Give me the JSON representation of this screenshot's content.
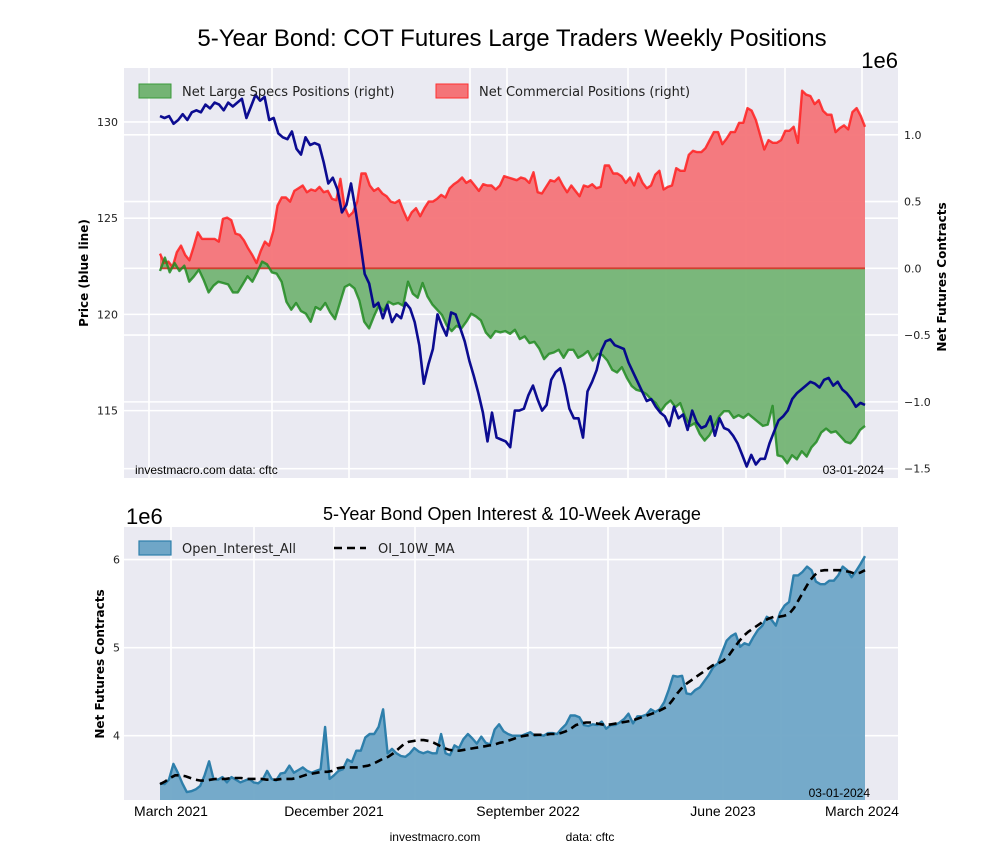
{
  "chart_data": [
    {
      "type": "area",
      "title": "5-Year Bond: COT Futures Large Traders Weekly Positions",
      "ylabel_left": "Price (blue line)",
      "ylabel_right": "Net Futures Contracts",
      "right_axis_multiplier": "1e6",
      "yticks_left": [
        "115",
        "120",
        "125",
        "130"
      ],
      "ylim_left": [
        111.5,
        132.8
      ],
      "yticks_right": [
        "−1.5",
        "−1.0",
        "−0.5",
        "0.0",
        "0.5",
        "1.0"
      ],
      "ylim_right": [
        -1.57,
        1.5
      ],
      "grid": true,
      "legend": "top-left",
      "legend_entries": [
        "Net Large Specs Positions (right)",
        "Net Commercial Positions (right)"
      ],
      "annotations": {
        "source": "investmacro.com    data: cftc",
        "date": "03-01-2024"
      },
      "x_range": [
        "2021-03",
        "2024-03"
      ],
      "series": [
        {
          "name": "Price",
          "axis": "left",
          "color": "#00008b",
          "values": [
            130.3,
            130.2,
            130.3,
            129.9,
            130.1,
            130.4,
            130.1,
            130.5,
            130.6,
            130.5,
            130.9,
            130.7,
            131.0,
            130.9,
            130.6,
            131.0,
            130.8,
            131.0,
            131.2,
            130.2,
            130.8,
            131.4,
            131.1,
            131.3,
            130.1,
            130.2,
            129.4,
            129.2,
            129.1,
            129.5,
            128.6,
            128.3,
            129.2,
            128.8,
            128.9,
            128.8,
            127.9,
            126.8,
            127.1,
            126.5,
            125.3,
            125.7,
            126.8,
            125.4,
            123.8,
            122.1,
            121.6,
            120.4,
            120.6,
            119.8,
            120.5,
            119.6,
            120.0,
            119.8,
            120.6,
            120.3,
            119.6,
            118.4,
            116.4,
            117.4,
            118.2,
            120.0,
            119.4,
            118.9,
            120.1,
            120.0,
            119.3,
            118.6,
            117.6,
            116.8,
            115.9,
            114.9,
            113.4,
            114.9,
            113.6,
            113.5,
            113.4,
            113.1,
            115.0,
            115.0,
            115.1,
            115.8,
            116.3,
            115.6,
            115.0,
            115.3,
            116.6,
            117.0,
            117.2,
            116.3,
            115.1,
            114.6,
            114.6,
            113.6,
            116.0,
            116.5,
            117.1,
            118.1,
            118.6,
            118.7,
            118.4,
            118.3,
            118.2,
            117.5,
            117.0,
            116.5,
            116.0,
            115.5,
            115.6,
            115.2,
            114.9,
            114.7,
            114.2,
            115.2,
            114.6,
            114.8,
            114.0,
            115.0,
            114.4,
            114.1,
            114.2,
            114.7,
            113.7,
            114.6,
            114.1,
            114.0,
            113.7,
            113.3,
            112.7,
            112.1,
            112.7,
            112.2,
            112.5,
            112.5,
            113.3,
            113.9,
            114.5,
            114.7,
            115.0,
            115.6,
            115.9,
            116.1,
            116.3,
            116.5,
            116.4,
            116.2,
            116.6,
            116.7,
            116.3,
            116.5,
            116.1,
            115.9,
            115.6,
            115.2,
            115.4,
            115.3
          ]
        },
        {
          "name": "Net Large Specs Positions (right)",
          "axis": "right",
          "color": "#228b22",
          "fill": "#74b474",
          "values": [
            -0.02,
            0.08,
            -0.03,
            0.04,
            -0.02,
            0.02,
            -0.1,
            -0.06,
            -0.01,
            -0.09,
            -0.18,
            -0.13,
            -0.1,
            -0.11,
            -0.12,
            -0.18,
            -0.18,
            -0.12,
            -0.06,
            -0.1,
            -0.03,
            0.05,
            0.03,
            -0.03,
            -0.04,
            -0.1,
            -0.25,
            -0.31,
            -0.26,
            -0.32,
            -0.34,
            -0.4,
            -0.29,
            -0.31,
            -0.26,
            -0.33,
            -0.38,
            -0.26,
            -0.14,
            -0.12,
            -0.15,
            -0.24,
            -0.4,
            -0.45,
            -0.36,
            -0.28,
            -0.32,
            -0.25,
            -0.27,
            -0.26,
            -0.28,
            -0.1,
            -0.19,
            -0.22,
            -0.11,
            -0.21,
            -0.27,
            -0.31,
            -0.35,
            -0.43,
            -0.47,
            -0.43,
            -0.45,
            -0.4,
            -0.34,
            -0.36,
            -0.39,
            -0.48,
            -0.52,
            -0.47,
            -0.48,
            -0.47,
            -0.49,
            -0.46,
            -0.53,
            -0.51,
            -0.56,
            -0.55,
            -0.6,
            -0.68,
            -0.64,
            -0.63,
            -0.61,
            -0.67,
            -0.61,
            -0.61,
            -0.67,
            -0.65,
            -0.62,
            -0.69,
            -0.64,
            -0.65,
            -0.69,
            -0.76,
            -0.78,
            -0.74,
            -0.82,
            -0.88,
            -0.91,
            -0.92,
            -0.94,
            -0.98,
            -1.01,
            -1.07,
            -1.02,
            -0.99,
            -1.04,
            -1.01,
            -1.11,
            -1.18,
            -1.16,
            -1.24,
            -1.29,
            -1.25,
            -1.18,
            -1.11,
            -1.07,
            -1.07,
            -1.12,
            -1.1,
            -1.12,
            -1.09,
            -1.12,
            -1.15,
            -1.18,
            -1.17,
            -1.03,
            -1.4,
            -1.41,
            -1.46,
            -1.4,
            -1.43,
            -1.37,
            -1.41,
            -1.34,
            -1.3,
            -1.23,
            -1.2,
            -1.23,
            -1.22,
            -1.26,
            -1.3,
            -1.31,
            -1.27,
            -1.21,
            -1.18
          ]
        },
        {
          "name": "Net Commercial Positions (right)",
          "axis": "right",
          "color": "#ff2020",
          "fill": "#f47478",
          "values": [
            0.11,
            0.04,
            0.05,
            0.01,
            0.12,
            0.17,
            0.1,
            0.06,
            0.16,
            0.27,
            0.22,
            0.22,
            0.22,
            0.22,
            0.2,
            0.37,
            0.38,
            0.36,
            0.26,
            0.25,
            0.21,
            0.15,
            0.1,
            0.04,
            0.13,
            0.2,
            0.17,
            0.28,
            0.47,
            0.53,
            0.53,
            0.5,
            0.58,
            0.6,
            0.62,
            0.57,
            0.59,
            0.58,
            0.61,
            0.57,
            0.58,
            0.52,
            0.51,
            0.67,
            0.46,
            0.39,
            0.42,
            0.5,
            0.71,
            0.71,
            0.62,
            0.58,
            0.6,
            0.56,
            0.54,
            0.5,
            0.49,
            0.51,
            0.43,
            0.36,
            0.42,
            0.45,
            0.39,
            0.45,
            0.5,
            0.5,
            0.52,
            0.55,
            0.53,
            0.6,
            0.63,
            0.65,
            0.68,
            0.64,
            0.66,
            0.62,
            0.58,
            0.63,
            0.62,
            0.62,
            0.59,
            0.62,
            0.69,
            0.68,
            0.67,
            0.66,
            0.68,
            0.67,
            0.64,
            0.72,
            0.57,
            0.56,
            0.61,
            0.66,
            0.65,
            0.68,
            0.62,
            0.57,
            0.62,
            0.58,
            0.54,
            0.62,
            0.61,
            0.63,
            0.6,
            0.61,
            0.77,
            0.77,
            0.71,
            0.71,
            0.69,
            0.64,
            0.68,
            0.62,
            0.71,
            0.64,
            0.6,
            0.62,
            0.7,
            0.73,
            0.59,
            0.61,
            0.62,
            0.75,
            0.73,
            0.73,
            0.85,
            0.88,
            0.87,
            0.87,
            0.9,
            0.96,
            1.02,
            1.02,
            0.93,
            0.97,
            1.02,
            1.02,
            1.09,
            1.09,
            1.2,
            1.18,
            1.11,
            1.0,
            0.89,
            0.96,
            0.94,
            0.94,
            0.96,
            1.03,
            1.03,
            1.06,
            0.94,
            1.33,
            1.3,
            1.29,
            1.23,
            1.26,
            1.18,
            1.15,
            1.15,
            1.02,
            1.05,
            1.07,
            1.04,
            1.17,
            1.2,
            1.14,
            1.06
          ]
        }
      ]
    },
    {
      "type": "area",
      "title": "5-Year Bond Open Interest & 10-Week Average",
      "ylabel": "Net Futures Contracts",
      "y_multiplier": "1e6",
      "yticks": [
        "4",
        "5",
        "6"
      ],
      "ylim": [
        3.27,
        6.37
      ],
      "xticks": [
        "March 2021",
        "December 2021",
        "September 2022",
        "June 2023",
        "March 2024"
      ],
      "grid": true,
      "legend": "top-left",
      "legend_entries": [
        "Open_Interest_All",
        "OI_10W_MA"
      ],
      "annotations": {
        "date": "03-01-2024"
      },
      "footer": {
        "source": "investmacro.com",
        "data": "data: cftc"
      },
      "series": [
        {
          "name": "Open_Interest_All",
          "color": "#2e7fab",
          "fill": "#6fa6c7",
          "values": [
            3.46,
            3.45,
            3.5,
            3.68,
            3.58,
            3.46,
            3.36,
            3.37,
            3.39,
            3.43,
            3.55,
            3.71,
            3.51,
            3.5,
            3.53,
            3.47,
            3.53,
            3.5,
            3.47,
            3.49,
            3.51,
            3.47,
            3.46,
            3.5,
            3.6,
            3.51,
            3.49,
            3.57,
            3.58,
            3.66,
            3.58,
            3.61,
            3.64,
            3.6,
            3.58,
            3.6,
            3.62,
            4.1,
            3.51,
            3.55,
            3.6,
            3.62,
            3.73,
            3.7,
            3.83,
            3.83,
            3.98,
            4.02,
            4.02,
            4.1,
            4.3,
            3.8,
            3.85,
            3.8,
            3.77,
            3.76,
            3.8,
            3.86,
            3.82,
            3.8,
            3.82,
            3.8,
            3.8,
            4.02,
            3.8,
            3.78,
            3.89,
            3.86,
            3.96,
            4.02,
            3.97,
            3.91,
            3.99,
            3.92,
            3.9,
            4.07,
            4.13,
            4.05,
            4.02,
            4.0,
            4.0,
            4.0,
            4.02,
            4.04,
            4.0,
            4.01,
            4.0,
            4.03,
            4.03,
            4.02,
            4.08,
            4.13,
            4.23,
            4.23,
            4.21,
            4.12,
            4.11,
            4.13,
            4.12,
            4.16,
            4.08,
            4.12,
            4.12,
            4.15,
            4.19,
            4.25,
            4.14,
            4.22,
            4.22,
            4.24,
            4.3,
            4.27,
            4.3,
            4.38,
            4.52,
            4.68,
            4.67,
            4.68,
            4.48,
            4.47,
            4.52,
            4.55,
            4.62,
            4.69,
            4.78,
            4.82,
            4.95,
            5.08,
            5.13,
            5.16,
            5.01,
            5.05,
            5.03,
            5.12,
            5.2,
            5.25,
            5.35,
            5.32,
            5.25,
            5.4,
            5.48,
            5.52,
            5.82,
            5.82,
            5.86,
            5.92,
            5.88,
            5.75,
            5.72,
            5.72,
            5.76,
            5.76,
            5.82,
            5.92,
            5.88,
            5.8,
            5.87,
            5.95,
            6.04
          ]
        },
        {
          "name": "OI_10W_MA",
          "color": "#000000",
          "values": [
            3.45,
            3.48,
            3.52,
            3.55,
            3.55,
            3.54,
            3.52,
            3.5,
            3.49,
            3.49,
            3.5,
            3.51,
            3.51,
            3.51,
            3.52,
            3.52,
            3.52,
            3.51,
            3.51,
            3.51,
            3.51,
            3.5,
            3.5,
            3.5,
            3.51,
            3.51,
            3.51,
            3.52,
            3.54,
            3.56,
            3.57,
            3.58,
            3.59,
            3.59,
            3.6,
            3.63,
            3.64,
            3.64,
            3.64,
            3.64,
            3.65,
            3.66,
            3.68,
            3.71,
            3.74,
            3.76,
            3.8,
            3.85,
            3.9,
            3.93,
            3.94,
            3.95,
            3.95,
            3.94,
            3.92,
            3.89,
            3.86,
            3.84,
            3.83,
            3.83,
            3.84,
            3.85,
            3.86,
            3.87,
            3.88,
            3.89,
            3.9,
            3.92,
            3.93,
            3.95,
            3.97,
            3.99,
            4.0,
            4.01,
            4.01,
            4.01,
            4.01,
            4.02,
            4.02,
            4.03,
            4.05,
            4.08,
            4.12,
            4.14,
            4.15,
            4.15,
            4.14,
            4.13,
            4.12,
            4.13,
            4.14,
            4.15,
            4.16,
            4.17,
            4.19,
            4.21,
            4.23,
            4.25,
            4.27,
            4.3,
            4.33,
            4.4,
            4.48,
            4.55,
            4.6,
            4.64,
            4.68,
            4.72,
            4.76,
            4.8,
            4.82,
            4.85,
            4.9,
            4.98,
            5.06,
            5.13,
            5.18,
            5.22,
            5.26,
            5.3,
            5.33,
            5.35,
            5.35,
            5.36,
            5.38,
            5.45,
            5.55,
            5.65,
            5.75,
            5.82,
            5.87,
            5.88,
            5.88,
            5.88,
            5.88,
            5.87,
            5.86,
            5.84,
            5.85,
            5.88
          ]
        }
      ]
    }
  ]
}
